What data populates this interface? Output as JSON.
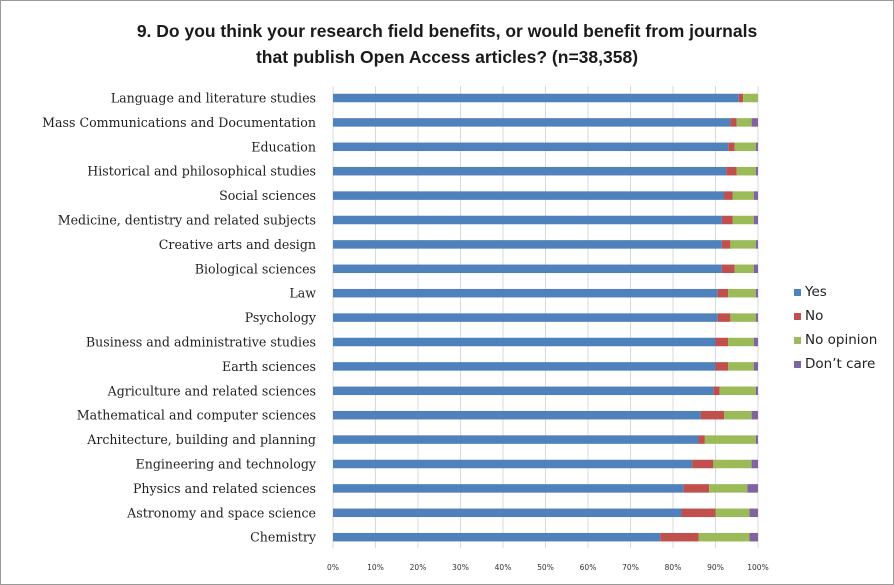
{
  "chart_data": {
    "type": "bar",
    "orientation": "horizontal",
    "stacked": true,
    "title_line1": "9. Do you think your research field benefits, or would benefit from journals",
    "title_line2": "that publish Open Access articles?  (n=38,358)",
    "categories": [
      "Language and literature studies",
      "Mass Communications and Documentation",
      "Education",
      "Historical and philosophical studies",
      "Social sciences",
      "Medicine, dentistry and related subjects",
      "Creative arts and design",
      "Biological sciences",
      "Law",
      "Psychology",
      "Business and administrative studies",
      "Earth sciences",
      "Agriculture and related sciences",
      "Mathematical and computer sciences",
      "Architecture, building and planning",
      "Engineering and technology",
      "Physics and related sciences",
      "Astronomy and space science",
      "Chemistry"
    ],
    "series": [
      {
        "name": "Yes",
        "color": "#4f81bd",
        "values": [
          95.5,
          93.5,
          93,
          92.5,
          92,
          91.5,
          91.5,
          91.5,
          90.5,
          90.5,
          90,
          90,
          89.5,
          86.5,
          86,
          84.5,
          82.5,
          82,
          77
        ]
      },
      {
        "name": "No",
        "color": "#c0504d",
        "values": [
          1,
          1.5,
          1.5,
          2.5,
          2,
          2.5,
          2,
          3,
          2.5,
          3,
          3,
          3,
          1.5,
          5.5,
          1.5,
          5,
          6,
          8,
          9
        ]
      },
      {
        "name": "No opinion",
        "color": "#9bbb59",
        "values": [
          3.5,
          3.5,
          5,
          4.5,
          5,
          5,
          6,
          4.5,
          6.5,
          6,
          6,
          6,
          8.5,
          6.5,
          12,
          9,
          9,
          8,
          12
        ]
      },
      {
        "name": "Don’t care",
        "color": "#8064a2",
        "values": [
          0,
          1.5,
          0.5,
          0.5,
          1,
          1,
          0.5,
          1,
          0.5,
          0.5,
          1,
          1,
          0.5,
          1.5,
          0.5,
          1.5,
          2.5,
          2,
          2
        ]
      }
    ],
    "xticks": [
      "0%",
      "10%",
      "20%",
      "30%",
      "40%",
      "50%",
      "60%",
      "70%",
      "80%",
      "90%",
      "100%"
    ],
    "xlim": [
      0,
      100
    ],
    "grid": true,
    "legend_position": "right"
  }
}
